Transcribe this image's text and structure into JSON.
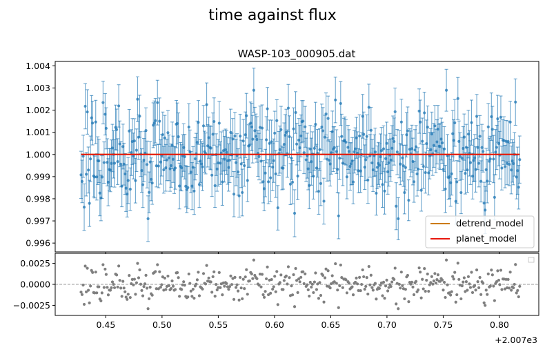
{
  "figure": {
    "suptitle": "time against flux"
  },
  "chart_data": [
    {
      "type": "scatter",
      "title": "WASP-103_000905.dat",
      "xlabel": "",
      "ylabel": "",
      "xlim": [
        0.405,
        0.835
      ],
      "ylim": [
        0.9956,
        1.0042
      ],
      "x_offset_label": "+2.007e3",
      "x_ticks": [
        0.45,
        0.5,
        0.55,
        0.6,
        0.65,
        0.7,
        0.75,
        0.8
      ],
      "x_tick_labels": [
        "0.45",
        "0.50",
        "0.55",
        "0.60",
        "0.65",
        "0.70",
        "0.75",
        "0.80"
      ],
      "y_ticks": [
        0.996,
        0.997,
        0.998,
        0.999,
        1.0,
        1.001,
        1.002,
        1.003,
        1.004
      ],
      "y_tick_labels": [
        "0.996",
        "0.997",
        "0.998",
        "0.999",
        "1.000",
        "1.001",
        "1.002",
        "1.003",
        "1.004"
      ],
      "grid": false,
      "legend_position": "lower-right",
      "series": [
        {
          "kind": "errorbar",
          "color": "#1f77b4",
          "x_start": 0.428,
          "x_end": 0.818,
          "n_points": 420,
          "y_mean": 1.0,
          "y_std": 0.0011,
          "y_err": 0.001
        },
        {
          "name": "detrend_model",
          "kind": "line",
          "color": "#cc7a00",
          "x": [
            0.428,
            0.818
          ],
          "y": [
            1.0,
            1.0
          ]
        },
        {
          "name": "planet_model",
          "kind": "line",
          "color": "#e8160c",
          "x": [
            0.428,
            0.818
          ],
          "y": [
            1.0,
            1.0
          ]
        }
      ]
    },
    {
      "type": "scatter",
      "title": "",
      "xlim": [
        0.405,
        0.835
      ],
      "ylim": [
        -0.0037,
        0.0037
      ],
      "y_ticks": [
        -0.0025,
        0.0,
        0.0025
      ],
      "y_tick_labels": [
        "−0.0025",
        "0.0000",
        "0.0025"
      ],
      "reference_line": 0,
      "legend_position": "upper-right",
      "series": [
        {
          "kind": "residuals",
          "color": "#7f7f7f",
          "x_start": 0.428,
          "x_end": 0.818,
          "n_points": 420,
          "y_mean": 0.0,
          "y_std": 0.0011
        }
      ]
    }
  ]
}
